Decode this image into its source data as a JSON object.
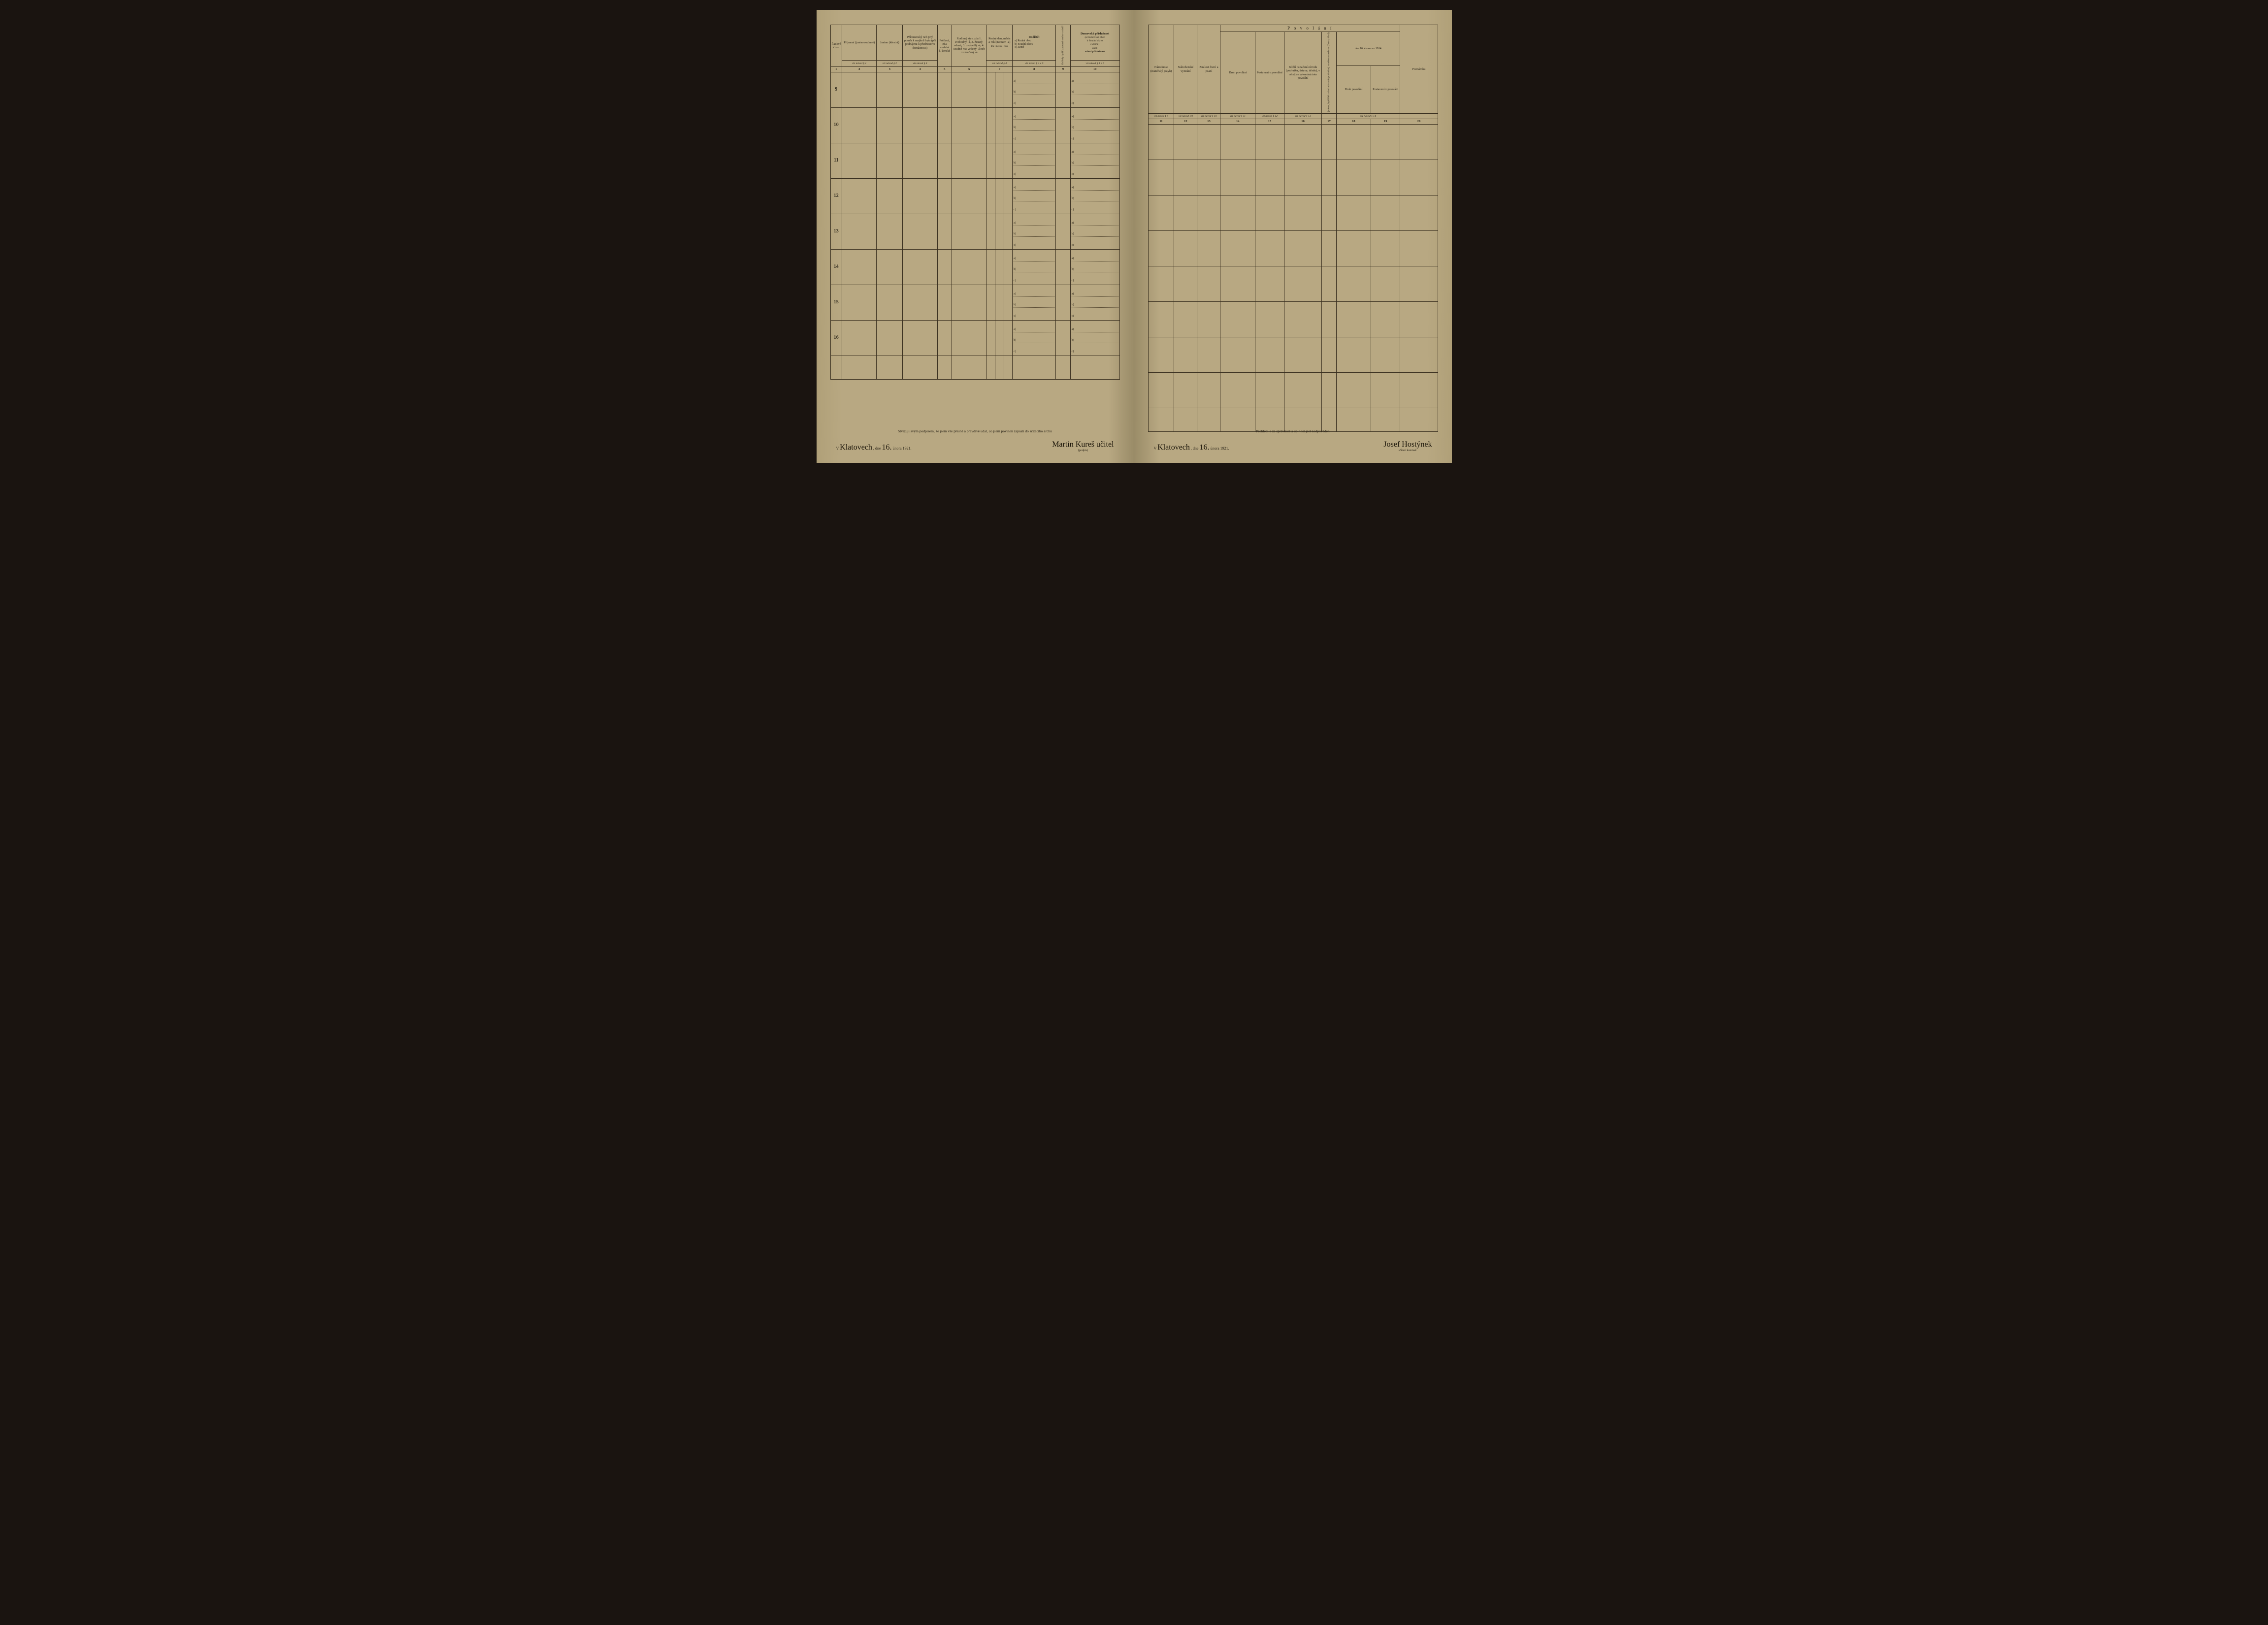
{
  "left": {
    "headers": {
      "col1": "Řadové číslo",
      "col2": "Příjmení (jméno rodinné)",
      "col3": "Jméno (křestní)",
      "col4": "Příbuzenský neb jiný poměr k majiteli bytu (při podnájmu k přednostovi domácnosti)",
      "col5": "Pohlaví, zda mužské č. ženské",
      "col6": "Rodinný stav, zda 1. svobodný -á, 2. ženatý, vdaná, 3. ovdovělý -á, 4. soudně roz-vedený -á neb rozloučený -á",
      "col7": "Rodný den, měsíc a rok (narozen -a)",
      "col7a": "dne",
      "col7b": "měsíce",
      "col7c": "roku",
      "col8": "Rodiště:",
      "col8a": "a) Rodná obec",
      "col8b": "b) Soudní okres",
      "col8c": "c) Země",
      "col9": "Od kdy bydlí zapsaná osoba v obci?",
      "col10": "Domovská příslušnost",
      "col10a": "a Domovská obec",
      "col10b": "b Soudní okres",
      "col10c": "c Země)",
      "col10d": "aneb",
      "col10e": "státní příslušnost"
    },
    "refs": {
      "r2": "viz návod § 1",
      "r3": "viz návod § 2",
      "r4": "viz návod § 3",
      "r7": "viz návod § 4",
      "r8": "viz návod § 4 a 5",
      "r9": "viz návod § 4 a 6",
      "r10": "viz návod § 4 a 7"
    },
    "nums": [
      "1",
      "2",
      "3",
      "4",
      "5",
      "6",
      "7",
      "8",
      "9",
      "10"
    ],
    "rows": [
      "9",
      "10",
      "11",
      "12",
      "13",
      "14",
      "15",
      "16"
    ],
    "sub_labels": [
      "a)",
      "b)",
      "c)"
    ],
    "footer": {
      "affirm": "Stvrzuji svým podpisem, že jsem vše přesně a pravdivě udal, co jsem povinen zapsati do sčítacího archu",
      "place_prefix": "V",
      "place": "Klatovech",
      "date_prefix": ", dne",
      "day": "16.",
      "month_year": "února 1921.",
      "sig": "Martin Kureš  učitel",
      "sig_sub": "(podpis)"
    }
  },
  "right": {
    "headers": {
      "col11": "Národnost (mateřský jazyk)",
      "col12": "Náboženské vyznání",
      "col13": "Znalost čtení a psaní",
      "povolani": "P o v o l á n í",
      "col14": "Druh povolání",
      "col15": "Postavení v povolání",
      "col16": "Bližší označení závodu (pod-niku, ústavu, úřadu), v němž se vykonává toto povolání",
      "col17_vert": "jména, bydliště a druh závodů (pod-niku) zaměstnavatelova (firma, úřad)",
      "sub_date": "dne 16. července 1914",
      "col18": "Druh povolání",
      "col19": "Postavení v povolání",
      "col20": "Poznámka"
    },
    "refs": {
      "r11": "viz návod § 8",
      "r12": "viz návod § 9",
      "r13": "viz návod § 10",
      "r14": "viz návod § 11",
      "r15": "viz návod § 12",
      "r16": "viz návod § 13",
      "r1819": "viz návod § 14"
    },
    "nums": [
      "11",
      "12",
      "13",
      "14",
      "15",
      "16",
      "17",
      "18",
      "19",
      "20"
    ],
    "footer": {
      "affirm": "Prohlédl a za správnost a úplnost jest zodpověden",
      "place_prefix": "V",
      "place": "Klatovech",
      "date_prefix": ", dne",
      "day": "16.",
      "month_year": "února 1921.",
      "sig": "Josef Hostýnek",
      "sig_sub": "sčítací komisař."
    }
  },
  "colors": {
    "paper": "#b8a882",
    "ink": "#2a2418",
    "border": "#3a3020"
  }
}
